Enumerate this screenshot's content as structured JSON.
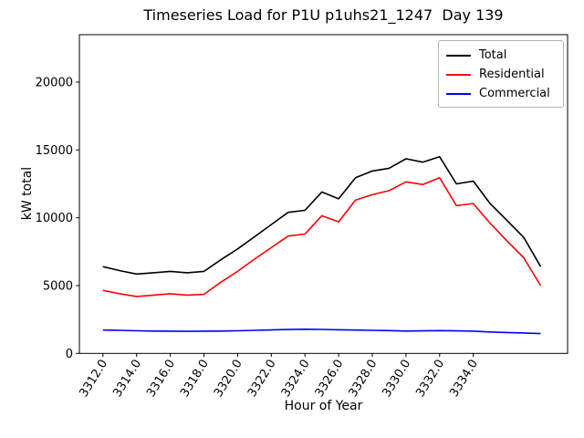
{
  "window": {
    "background": "#ffffff"
  },
  "chart_data": {
    "type": "line",
    "title": "Timeseries Load for P1U p1uhs21_1247  Day 139",
    "xlabel": "Hour of Year",
    "ylabel": "kW total",
    "grid": false,
    "legend_position": "upper right",
    "xlim": [
      3310.6,
      3339.6
    ],
    "ylim": [
      0,
      23500
    ],
    "x_ticks": {
      "positions": [
        3312,
        3314,
        3316,
        3318,
        3320,
        3322,
        3324,
        3326,
        3328,
        3330,
        3332,
        3334
      ],
      "labels": [
        "3312.0",
        "3314.0",
        "3316.0",
        "3318.0",
        "3320.0",
        "3322.0",
        "3324.0",
        "3326.0",
        "3328.0",
        "3330.0",
        "3332.0",
        "3334.0"
      ],
      "rotation_deg": -58
    },
    "y_ticks": {
      "positions": [
        0,
        5000,
        10000,
        15000,
        20000
      ],
      "labels": [
        "0",
        "5000",
        "10000",
        "15000",
        "20000"
      ]
    },
    "x": [
      3312,
      3313,
      3314,
      3315,
      3316,
      3317,
      3318,
      3319,
      3320,
      3321,
      3322,
      3323,
      3324,
      3325,
      3326,
      3327,
      3328,
      3329,
      3330,
      3331,
      3332,
      3333,
      3334,
      3335,
      3336,
      3337,
      3338
    ],
    "series": [
      {
        "name": "Total",
        "color": "#000000",
        "values": [
          6400,
          6100,
          5850,
          5950,
          6050,
          5950,
          6050,
          6900,
          7700,
          8600,
          9500,
          10400,
          10550,
          11900,
          11400,
          12950,
          13450,
          13650,
          14350,
          14100,
          14500,
          12500,
          12700,
          11050,
          9800,
          8550,
          6400
        ]
      },
      {
        "name": "Residential",
        "color": "#ff0000",
        "values": [
          4650,
          4400,
          4200,
          4300,
          4400,
          4300,
          4350,
          5250,
          6050,
          6950,
          7800,
          8650,
          8800,
          10150,
          9700,
          11300,
          11700,
          12000,
          12650,
          12450,
          12950,
          10900,
          11050,
          9600,
          8300,
          7050,
          5000
        ]
      },
      {
        "name": "Commercial",
        "color": "#0000ff",
        "values": [
          1720,
          1700,
          1670,
          1650,
          1640,
          1630,
          1640,
          1650,
          1670,
          1700,
          1730,
          1760,
          1780,
          1770,
          1740,
          1720,
          1700,
          1680,
          1650,
          1660,
          1680,
          1660,
          1640,
          1580,
          1540,
          1510,
          1460
        ]
      }
    ]
  }
}
